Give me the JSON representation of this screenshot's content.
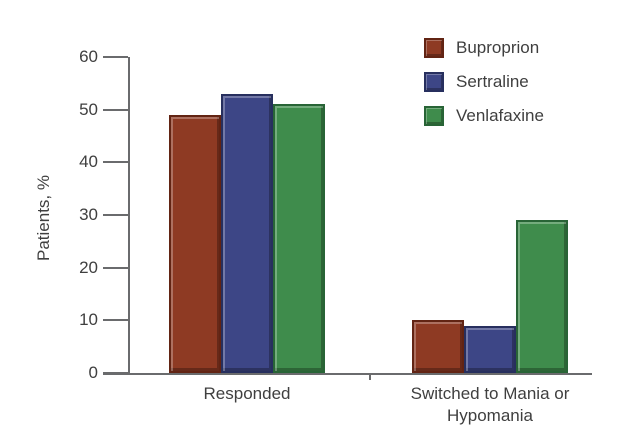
{
  "chart_data": {
    "type": "bar",
    "title": "",
    "xlabel": "",
    "ylabel": "Patients, %",
    "ylim": [
      0,
      60
    ],
    "yticks": [
      0,
      10,
      20,
      30,
      40,
      50,
      60
    ],
    "categories": [
      "Responded",
      "Switched to Mania or Hypomania"
    ],
    "series": [
      {
        "name": "Buproprion",
        "values": [
          49,
          10
        ],
        "fill": "#8e3a23",
        "border": "#622413"
      },
      {
        "name": "Sertraline",
        "values": [
          53,
          9
        ],
        "fill": "#3d4686",
        "border": "#272f5e"
      },
      {
        "name": "Venlafaxine",
        "values": [
          51,
          29
        ],
        "fill": "#3f8c4c",
        "border": "#286436"
      }
    ],
    "legend_position": "top-right",
    "grid": false
  },
  "colors": {
    "axis": "#6a6b6d",
    "text": "#3f3f3f",
    "background": "#ffffff"
  }
}
